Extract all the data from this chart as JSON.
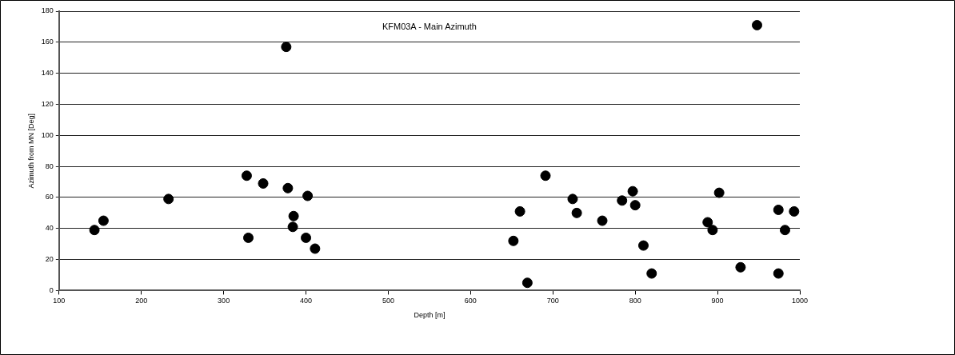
{
  "chart_data": {
    "type": "scatter",
    "title": "KFM03A - Main Azimuth",
    "xlabel": "Depth [m]",
    "ylabel": "Azimuth from MN [Deg]",
    "xlim": [
      100,
      1000
    ],
    "xticks": [
      100,
      200,
      300,
      400,
      500,
      600,
      700,
      800,
      900,
      1000
    ],
    "ylim": [
      0,
      180
    ],
    "yticks": [
      0,
      20,
      40,
      60,
      80,
      100,
      120,
      140,
      160,
      180
    ],
    "grid": "y",
    "legend": false,
    "marker": "circle",
    "series": [
      {
        "color": "#000000",
        "x": [
          143,
          154,
          233,
          328,
          330,
          348,
          376,
          378,
          385,
          384,
          400,
          402,
          411,
          652,
          660,
          669,
          691,
          724,
          729,
          760,
          784,
          797,
          800,
          810,
          820,
          888,
          894,
          902,
          928,
          948,
          974,
          974,
          982,
          993
        ],
        "values": [
          39,
          45,
          59,
          74,
          34,
          69,
          157,
          66,
          48,
          41,
          34,
          61,
          27,
          32,
          51,
          5,
          74,
          59,
          50,
          45,
          58,
          64,
          55,
          29,
          11,
          44,
          39,
          63,
          15,
          171,
          52,
          11,
          39,
          51
        ]
      }
    ]
  }
}
